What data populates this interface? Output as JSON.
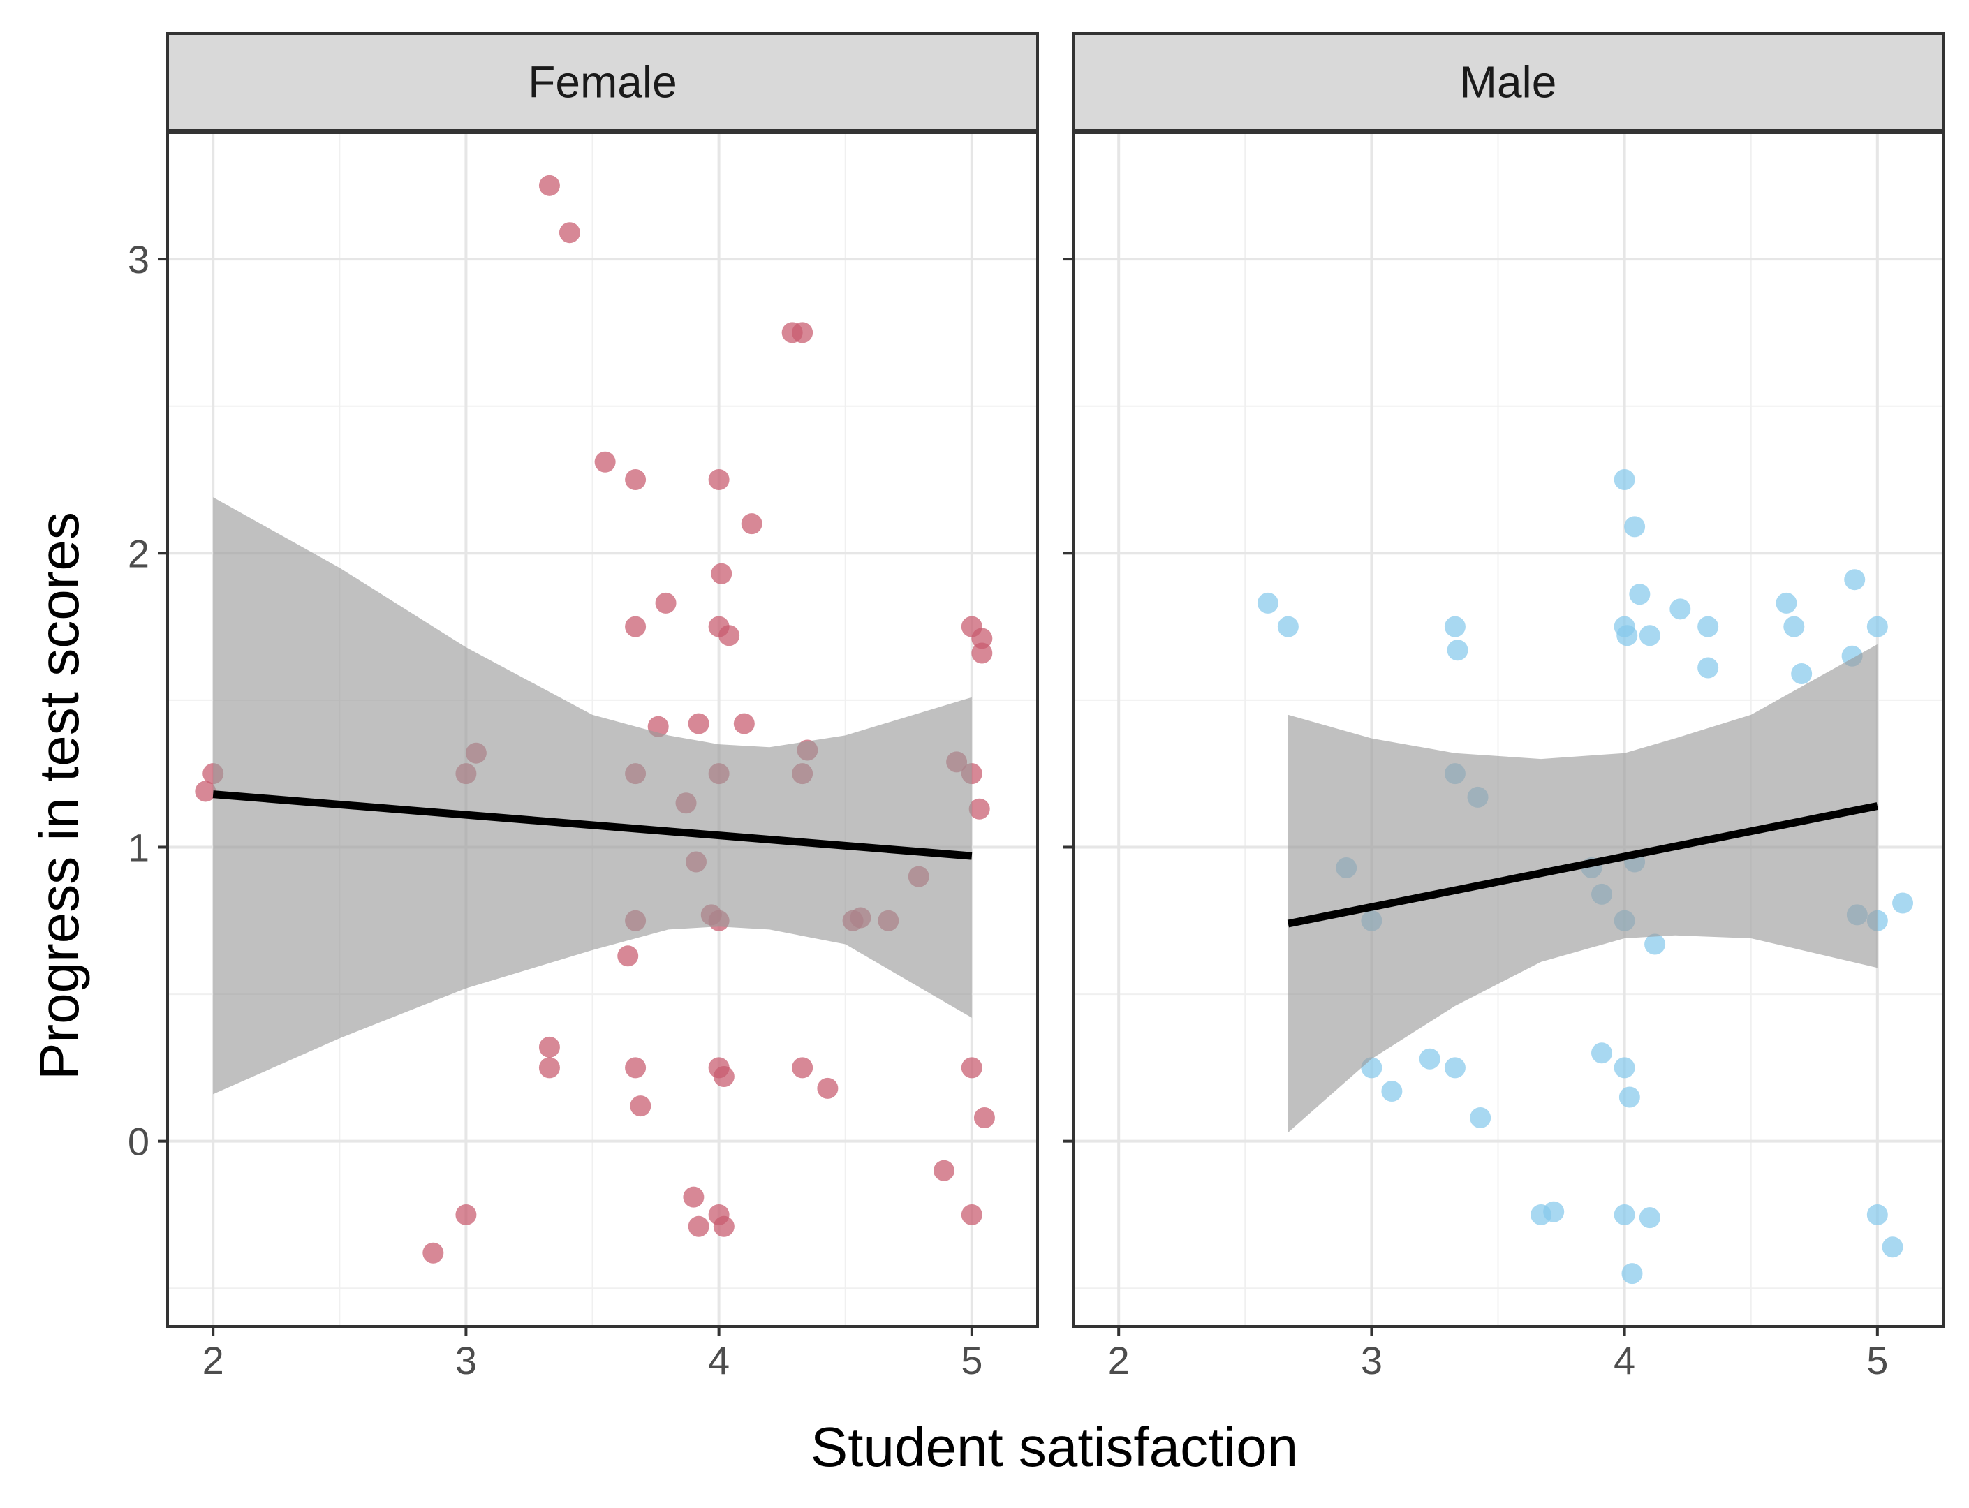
{
  "chart_data": {
    "type": "scatter",
    "xlabel": "Student satisfaction",
    "ylabel": "Progress in test scores",
    "xlim": [
      1.82,
      5.26
    ],
    "ylim": [
      -0.63,
      3.43
    ],
    "x_ticks": [
      2,
      3,
      4,
      5
    ],
    "y_ticks": [
      0,
      1,
      2,
      3
    ],
    "grid": true,
    "trend": "linear fit with grey confidence band",
    "panels": [
      {
        "label": "Female",
        "color": "#c85a6e",
        "fit": {
          "x_start": 2.0,
          "y_start": 1.18,
          "x_end": 5.0,
          "y_end": 0.97
        },
        "band": {
          "x": [
            2.0,
            2.5,
            3.0,
            3.5,
            3.8,
            4.0,
            4.2,
            4.5,
            5.0
          ],
          "upper": [
            2.19,
            1.95,
            1.68,
            1.45,
            1.38,
            1.35,
            1.34,
            1.38,
            1.51
          ],
          "lower": [
            0.16,
            0.35,
            0.52,
            0.65,
            0.72,
            0.73,
            0.72,
            0.67,
            0.42
          ]
        },
        "points": [
          [
            1.97,
            1.19
          ],
          [
            2.0,
            1.25
          ],
          [
            2.87,
            -0.38
          ],
          [
            3.0,
            1.25
          ],
          [
            3.04,
            1.32
          ],
          [
            3.0,
            -0.25
          ],
          [
            3.33,
            3.25
          ],
          [
            3.41,
            3.09
          ],
          [
            3.33,
            0.25
          ],
          [
            3.33,
            0.32
          ],
          [
            3.55,
            2.31
          ],
          [
            3.67,
            2.25
          ],
          [
            3.67,
            1.75
          ],
          [
            3.67,
            1.25
          ],
          [
            3.67,
            0.75
          ],
          [
            3.64,
            0.63
          ],
          [
            3.67,
            0.25
          ],
          [
            3.69,
            0.12
          ],
          [
            3.76,
            1.41
          ],
          [
            3.79,
            1.83
          ],
          [
            3.87,
            1.15
          ],
          [
            3.91,
            0.95
          ],
          [
            3.92,
            1.42
          ],
          [
            3.9,
            -0.19
          ],
          [
            3.92,
            -0.29
          ],
          [
            3.97,
            0.77
          ],
          [
            4.0,
            2.25
          ],
          [
            4.01,
            1.93
          ],
          [
            4.0,
            1.75
          ],
          [
            4.04,
            1.72
          ],
          [
            4.0,
            1.25
          ],
          [
            4.0,
            0.75
          ],
          [
            4.0,
            0.25
          ],
          [
            4.02,
            0.22
          ],
          [
            4.0,
            -0.25
          ],
          [
            4.02,
            -0.29
          ],
          [
            4.1,
            1.42
          ],
          [
            4.13,
            2.1
          ],
          [
            4.29,
            2.75
          ],
          [
            4.33,
            2.75
          ],
          [
            4.33,
            1.25
          ],
          [
            4.35,
            1.33
          ],
          [
            4.33,
            0.25
          ],
          [
            4.43,
            0.18
          ],
          [
            4.53,
            0.75
          ],
          [
            4.56,
            0.76
          ],
          [
            4.67,
            0.75
          ],
          [
            4.79,
            0.9
          ],
          [
            4.89,
            -0.1
          ],
          [
            4.94,
            1.29
          ],
          [
            5.0,
            1.75
          ],
          [
            5.04,
            1.71
          ],
          [
            5.04,
            1.66
          ],
          [
            5.0,
            1.25
          ],
          [
            5.03,
            1.13
          ],
          [
            5.0,
            0.25
          ],
          [
            5.05,
            0.08
          ],
          [
            5.0,
            -0.25
          ]
        ]
      },
      {
        "label": "Male",
        "color": "#87c9ec",
        "fit": {
          "x_start": 2.67,
          "y_start": 0.74,
          "x_end": 5.0,
          "y_end": 1.14
        },
        "band": {
          "x": [
            2.67,
            3.0,
            3.33,
            3.67,
            4.0,
            4.2,
            4.5,
            5.0
          ],
          "upper": [
            1.45,
            1.37,
            1.32,
            1.3,
            1.32,
            1.37,
            1.45,
            1.69
          ],
          "lower": [
            0.03,
            0.28,
            0.46,
            0.61,
            0.69,
            0.7,
            0.69,
            0.59
          ]
        },
        "points": [
          [
            2.59,
            1.83
          ],
          [
            2.67,
            1.75
          ],
          [
            2.9,
            0.93
          ],
          [
            3.0,
            0.75
          ],
          [
            3.0,
            0.25
          ],
          [
            3.08,
            0.17
          ],
          [
            3.23,
            0.28
          ],
          [
            3.33,
            1.75
          ],
          [
            3.34,
            1.67
          ],
          [
            3.33,
            1.25
          ],
          [
            3.42,
            1.17
          ],
          [
            3.33,
            0.25
          ],
          [
            3.43,
            0.08
          ],
          [
            3.67,
            -0.25
          ],
          [
            3.72,
            -0.24
          ],
          [
            3.87,
            0.93
          ],
          [
            3.91,
            0.84
          ],
          [
            3.91,
            0.3
          ],
          [
            4.0,
            2.25
          ],
          [
            4.04,
            2.09
          ],
          [
            4.06,
            1.86
          ],
          [
            4.0,
            1.75
          ],
          [
            4.01,
            1.72
          ],
          [
            4.1,
            1.72
          ],
          [
            4.04,
            0.95
          ],
          [
            4.0,
            0.75
          ],
          [
            4.12,
            0.67
          ],
          [
            4.0,
            0.25
          ],
          [
            4.02,
            0.15
          ],
          [
            4.0,
            -0.25
          ],
          [
            4.1,
            -0.26
          ],
          [
            4.03,
            -0.45
          ],
          [
            4.22,
            1.81
          ],
          [
            4.33,
            1.75
          ],
          [
            4.33,
            1.61
          ],
          [
            4.64,
            1.83
          ],
          [
            4.67,
            1.75
          ],
          [
            4.7,
            1.59
          ],
          [
            4.9,
            1.65
          ],
          [
            4.91,
            1.91
          ],
          [
            4.92,
            0.77
          ],
          [
            5.0,
            1.75
          ],
          [
            5.0,
            0.75
          ],
          [
            5.0,
            -0.25
          ],
          [
            5.06,
            -0.36
          ],
          [
            5.1,
            0.81
          ]
        ]
      }
    ]
  }
}
